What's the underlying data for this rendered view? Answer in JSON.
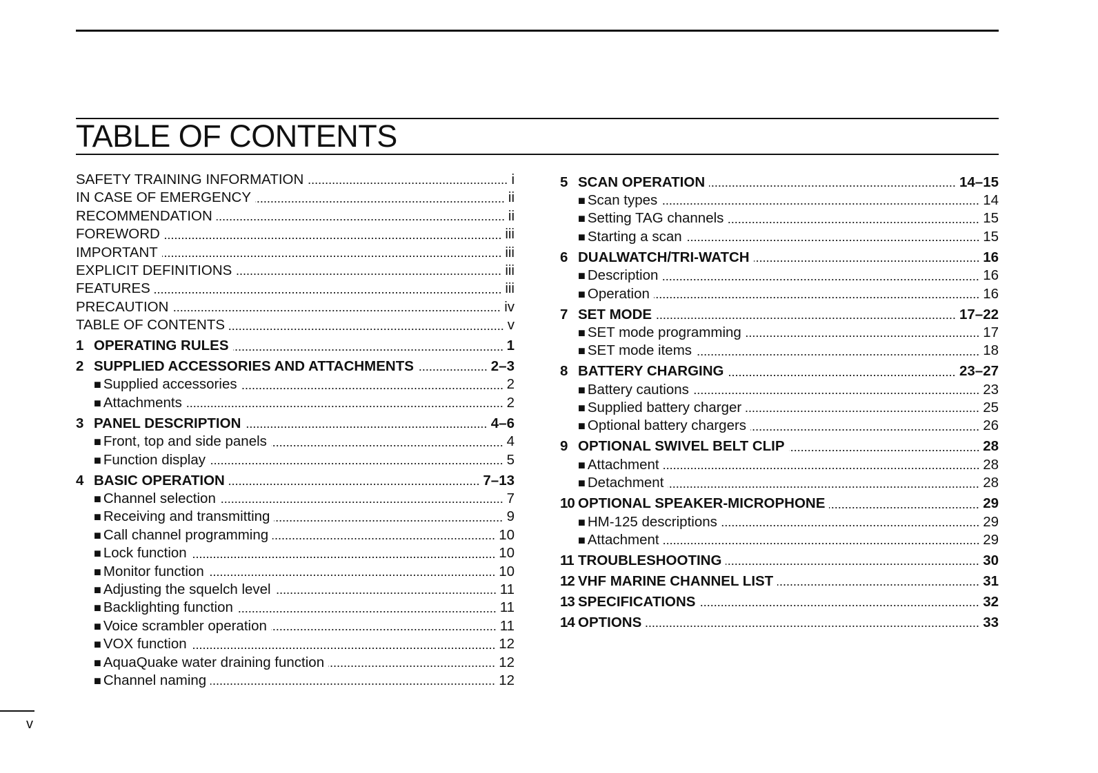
{
  "title": "TABLE OF CONTENTS",
  "footer_page": "v",
  "left_column": [
    {
      "type": "plain",
      "label": "SAFETY TRAINING INFORMATION",
      "page": "i"
    },
    {
      "type": "plain",
      "label": "IN CASE OF EMERGENCY",
      "page": "ii"
    },
    {
      "type": "plain",
      "label": "RECOMMENDATION",
      "page": "ii"
    },
    {
      "type": "plain",
      "label": "FOREWORD",
      "page": "iii"
    },
    {
      "type": "plain",
      "label": "IMPORTANT",
      "page": "iii"
    },
    {
      "type": "plain",
      "label": "EXPLICIT DEFINITIONS",
      "page": "iii"
    },
    {
      "type": "plain",
      "label": "FEATURES",
      "page": "iii"
    },
    {
      "type": "plain",
      "label": "PRECAUTION",
      "page": "iv"
    },
    {
      "type": "plain",
      "label": "TABLE OF CONTENTS",
      "page": "v"
    },
    {
      "type": "section",
      "num": "1",
      "label": "OPERATING RULES",
      "page": "1"
    },
    {
      "type": "section",
      "num": "2",
      "label": "SUPPLIED ACCESSORIES AND ATTACHMENTS",
      "page": "2–3"
    },
    {
      "type": "sub",
      "label": "Supplied accessories",
      "page": "2"
    },
    {
      "type": "sub",
      "label": "Attachments",
      "page": "2"
    },
    {
      "type": "section",
      "num": "3",
      "label": "PANEL DESCRIPTION",
      "page": "4–6"
    },
    {
      "type": "sub",
      "label": "Front, top and side panels",
      "page": "4"
    },
    {
      "type": "sub",
      "label": "Function display",
      "page": "5"
    },
    {
      "type": "section",
      "num": "4",
      "label": "BASIC OPERATION",
      "page": "7–13"
    },
    {
      "type": "sub",
      "label": "Channel selection",
      "page": "7"
    },
    {
      "type": "sub",
      "label": "Receiving and transmitting",
      "page": "9"
    },
    {
      "type": "sub",
      "label": "Call channel programming",
      "page": "10"
    },
    {
      "type": "sub",
      "label": "Lock function",
      "page": "10"
    },
    {
      "type": "sub",
      "label": "Monitor function",
      "page": "10"
    },
    {
      "type": "sub",
      "label": "Adjusting the squelch level",
      "page": "11"
    },
    {
      "type": "sub",
      "label": "Backlighting function",
      "page": "11"
    },
    {
      "type": "sub",
      "label": "Voice scrambler operation",
      "page": "11"
    },
    {
      "type": "sub",
      "label": "VOX function",
      "page": "12"
    },
    {
      "type": "sub",
      "label": "AquaQuake water draining function",
      "page": "12"
    },
    {
      "type": "sub",
      "label": "Channel naming",
      "page": "12"
    }
  ],
  "right_column": [
    {
      "type": "section",
      "num": "5",
      "label": "SCAN OPERATION",
      "page": "14–15"
    },
    {
      "type": "sub",
      "label": "Scan types",
      "page": "14"
    },
    {
      "type": "sub",
      "label": "Setting TAG channels",
      "page": "15"
    },
    {
      "type": "sub",
      "label": "Starting a scan",
      "page": "15"
    },
    {
      "type": "section",
      "num": "6",
      "label": "DUALWATCH/TRI-WATCH",
      "page": "16"
    },
    {
      "type": "sub",
      "label": "Description",
      "page": "16"
    },
    {
      "type": "sub",
      "label": "Operation",
      "page": "16"
    },
    {
      "type": "section",
      "num": "7",
      "label": "SET MODE",
      "page": "17–22"
    },
    {
      "type": "sub",
      "label": "SET mode programming",
      "page": "17"
    },
    {
      "type": "sub",
      "label": "SET mode items",
      "page": "18"
    },
    {
      "type": "section",
      "num": "8",
      "label": "BATTERY CHARGING",
      "page": "23–27"
    },
    {
      "type": "sub",
      "label": "Battery cautions",
      "page": "23"
    },
    {
      "type": "sub",
      "label": "Supplied battery charger",
      "page": "25"
    },
    {
      "type": "sub",
      "label": "Optional battery chargers",
      "page": "26"
    },
    {
      "type": "section",
      "num": "9",
      "label": "OPTIONAL SWIVEL BELT CLIP",
      "page": "28"
    },
    {
      "type": "sub",
      "label": "Attachment",
      "page": "28"
    },
    {
      "type": "sub",
      "label": "Detachment",
      "page": "28"
    },
    {
      "type": "section",
      "num": "10",
      "label": "OPTIONAL SPEAKER-MICROPHONE",
      "page": "29"
    },
    {
      "type": "sub",
      "label": "HM-125 descriptions",
      "page": "29"
    },
    {
      "type": "sub",
      "label": "Attachment",
      "page": "29"
    },
    {
      "type": "section",
      "num": "11",
      "label": "TROUBLESHOOTING",
      "page": "30"
    },
    {
      "type": "section",
      "num": "12",
      "label": "VHF MARINE CHANNEL LIST",
      "page": "31"
    },
    {
      "type": "section",
      "num": "13",
      "label": "SPECIFICATIONS",
      "page": "32"
    },
    {
      "type": "section",
      "num": "14",
      "label": "OPTIONS",
      "page": "33"
    }
  ]
}
